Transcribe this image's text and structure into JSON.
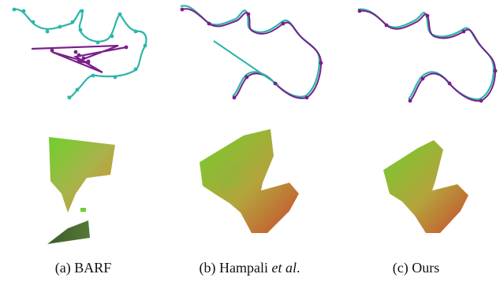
{
  "figure": {
    "panels": [
      {
        "id": "barf",
        "caption_prefix": "(a) BARF",
        "caption_italic": "",
        "caption_suffix": ""
      },
      {
        "id": "hampali",
        "caption_prefix": "(b) Hampali ",
        "caption_italic": "et al",
        "caption_suffix": "."
      },
      {
        "id": "ours",
        "caption_prefix": "(c) Ours",
        "caption_italic": "",
        "caption_suffix": ""
      }
    ],
    "legend_colors": {
      "ground_truth": "#2bb7a8",
      "estimated": "#7a1f8c"
    }
  },
  "colors": {
    "gt_line": "#2bb7a8",
    "est_line": "#7a1f8c",
    "mesh_green": "#6fcf2d",
    "mesh_orange": "#d98a2b",
    "mesh_red": "#c94a2f",
    "mesh_dark": "#3b5a2a"
  }
}
